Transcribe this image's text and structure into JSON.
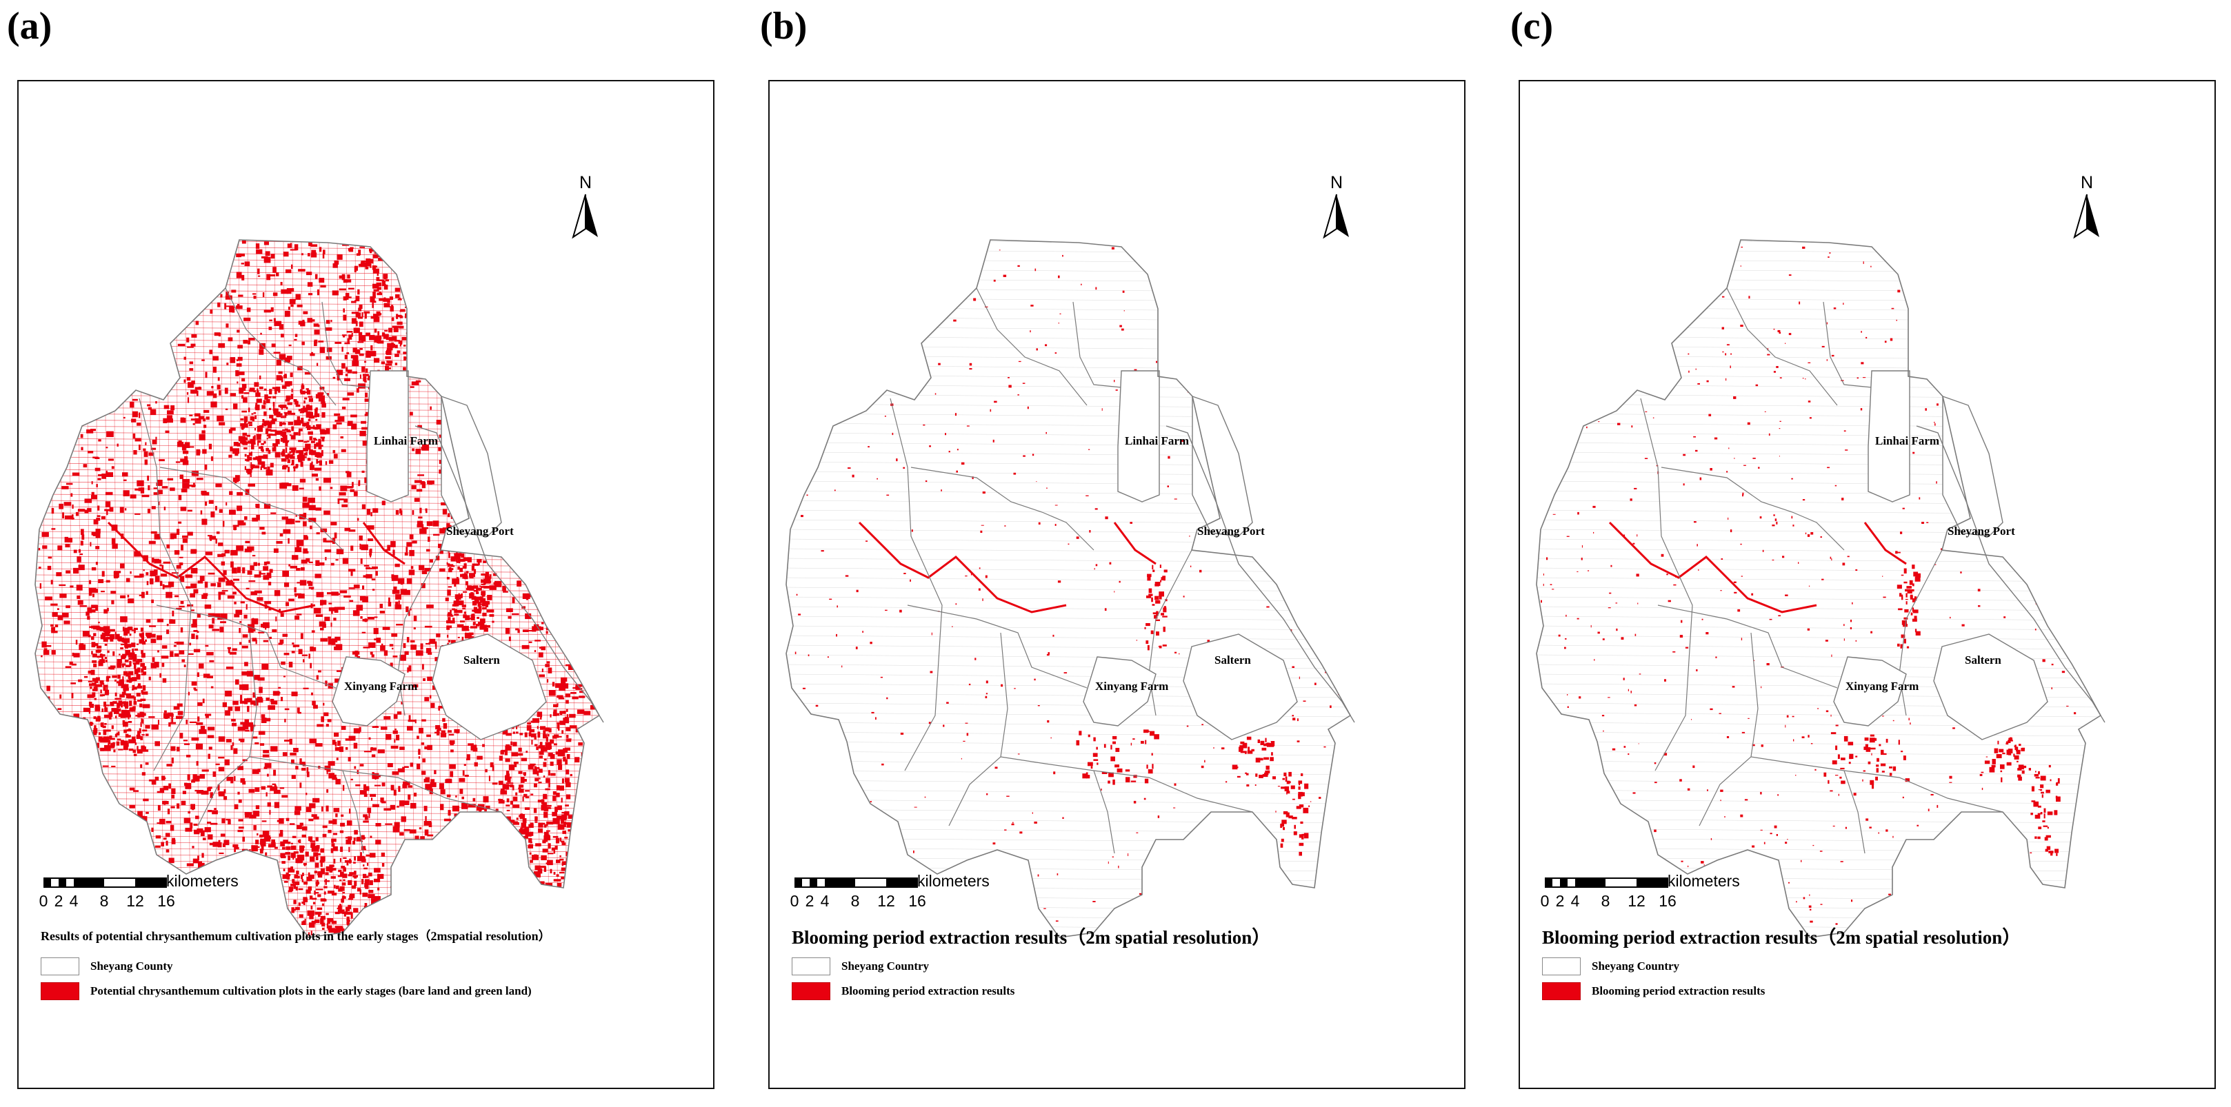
{
  "colors": {
    "highlight": "#e8000f",
    "boundary": "#7a7a7a"
  },
  "scale": {
    "ticks": [
      "0",
      "2",
      "4",
      "8",
      "12",
      "16"
    ],
    "unit": "kilometers"
  },
  "north_label": "N",
  "places": {
    "linhai": "Linhai Farm",
    "sheyang_port": "Sheyang Port",
    "saltern": "Saltern",
    "xinyang": "Xinyang Farm"
  },
  "panels": [
    {
      "letter": "(a)",
      "legend_title": "Results of potential chrysanthemum cultivation plots in the early stages（2mspatial resolution）",
      "boundary_label": "Sheyang County",
      "fill_label": "Potential chrysanthemum cultivation plots in the early stages (bare land and green land)",
      "density": 0.42
    },
    {
      "letter": "(b)",
      "legend_title": "Blooming period extraction results（2m spatial resolution）",
      "boundary_label": "Sheyang Country",
      "fill_label": "Blooming period extraction results",
      "density": 0.05
    },
    {
      "letter": "(c)",
      "legend_title": "Blooming period extraction results（2m spatial resolution）",
      "boundary_label": "Sheyang Country",
      "fill_label": "Blooming period extraction results",
      "density": 0.07
    }
  ]
}
